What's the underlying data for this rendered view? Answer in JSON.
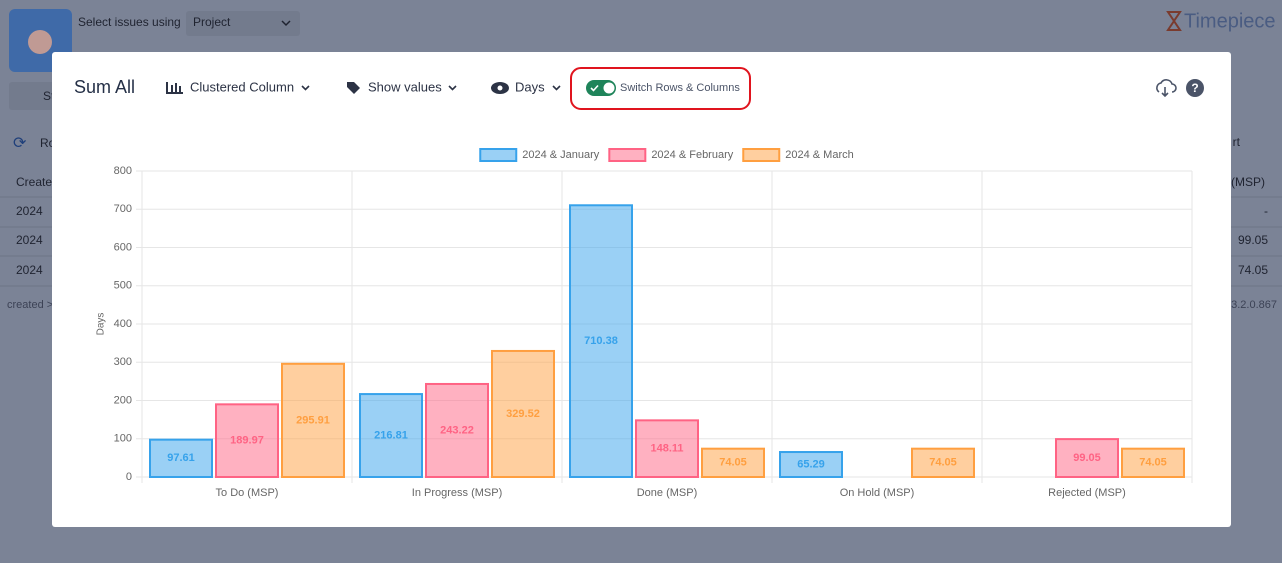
{
  "app": {
    "select_label": "Select issues using",
    "select_value": "Project",
    "brand": "Timepiece",
    "toolbar_fragment": "St",
    "rows_fragment": "Ro",
    "column_header": "Created",
    "right_header": "(MSP)",
    "right_fragment": "rt",
    "rows": [
      {
        "created": "2024",
        "value": "-"
      },
      {
        "created": "2024",
        "value": "99.05"
      },
      {
        "created": "2024",
        "value": "74.05"
      }
    ],
    "footer_left": "created >",
    "version": "3.2.0.867"
  },
  "modal": {
    "title": "Sum All",
    "chart_type": "Clustered Column",
    "show_values": "Show values",
    "unit": "Days",
    "switch": "Switch Rows & Columns"
  },
  "chart_data": {
    "type": "bar",
    "y_label": "Days",
    "categories": [
      "To Do (MSP)",
      "In Progress (MSP)",
      "Done (MSP)",
      "On Hold (MSP)",
      "Rejected (MSP)"
    ],
    "series": [
      {
        "name": "2024 & January",
        "color": "#36a2eb",
        "values": [
          97.61,
          216.81,
          710.38,
          65.29,
          null
        ]
      },
      {
        "name": "2024 & February",
        "color": "#ff6384",
        "values": [
          189.97,
          243.22,
          148.11,
          null,
          99.05
        ]
      },
      {
        "name": "2024 & March",
        "color": "#ff9f40",
        "values": [
          295.91,
          329.52,
          74.05,
          74.05,
          74.05
        ]
      }
    ],
    "ylim": [
      0,
      800
    ],
    "yticks": [
      0,
      100,
      200,
      300,
      400,
      500,
      600,
      700,
      800
    ],
    "grid": true,
    "legend": "top",
    "show_values": true
  }
}
